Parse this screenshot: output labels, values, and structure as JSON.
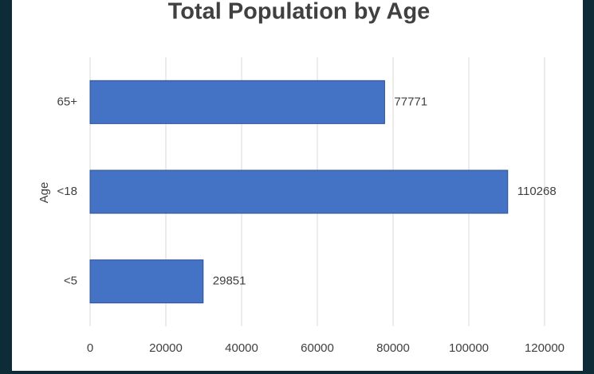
{
  "chart_data": {
    "type": "bar",
    "orientation": "horizontal",
    "title": "Total Population by Age",
    "y_label": "Age",
    "categories": [
      "65+",
      "<18",
      "<5"
    ],
    "values": [
      77771,
      110268,
      29851
    ],
    "color": "#4472c4",
    "xlim": [
      0,
      120000
    ],
    "xticks": [
      0,
      20000,
      40000,
      60000,
      80000,
      100000,
      120000
    ],
    "grid": true
  }
}
